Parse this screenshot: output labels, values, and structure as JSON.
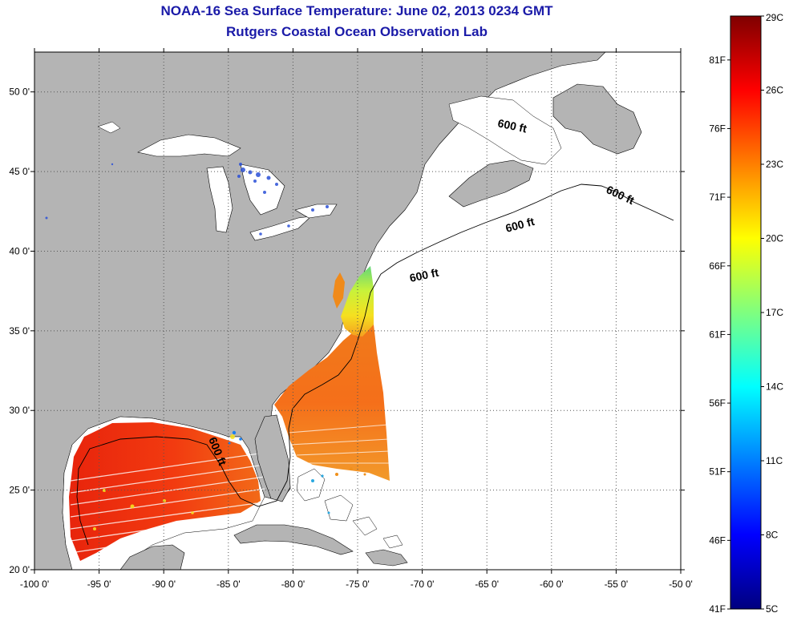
{
  "header": {
    "title": "NOAA-16 Sea Surface Temperature:  June 02, 2013 0234 GMT",
    "subtitle": "Rutgers Coastal Ocean Observation Lab"
  },
  "map": {
    "lon_ticks": [
      "-100 0'",
      "-95 0'",
      "-90 0'",
      "-85 0'",
      "-80 0'",
      "-75 0'",
      "-70 0'",
      "-65 0'",
      "-60 0'",
      "-55 0'",
      "-50 0'"
    ],
    "lat_ticks": [
      "50 0'",
      "45 0'",
      "40 0'",
      "35 0'",
      "30 0'",
      "25 0'",
      "20 0'"
    ],
    "lon_range": [
      -100,
      -50
    ],
    "lat_range": [
      20,
      52.5
    ],
    "grid": true,
    "contour_label": "600 ft",
    "colors": {
      "land": "#b4b4b4",
      "ocean_nodata": "#ffffff",
      "coast": "#000000",
      "grid": "#555555"
    }
  },
  "colorbar": {
    "celsius": [
      "29C",
      "26C",
      "23C",
      "20C",
      "17C",
      "14C",
      "11C",
      "8C",
      "5C"
    ],
    "fahrenheit": [
      "81F",
      "76F",
      "71F",
      "66F",
      "61F",
      "56F",
      "51F",
      "46F",
      "41F"
    ],
    "range_c": [
      5,
      29
    ],
    "colormap": [
      "#7f0000",
      "#ff0000",
      "#ff7f00",
      "#ffff00",
      "#7fff7f",
      "#00ffff",
      "#007fff",
      "#0000ff",
      "#00007f"
    ]
  }
}
